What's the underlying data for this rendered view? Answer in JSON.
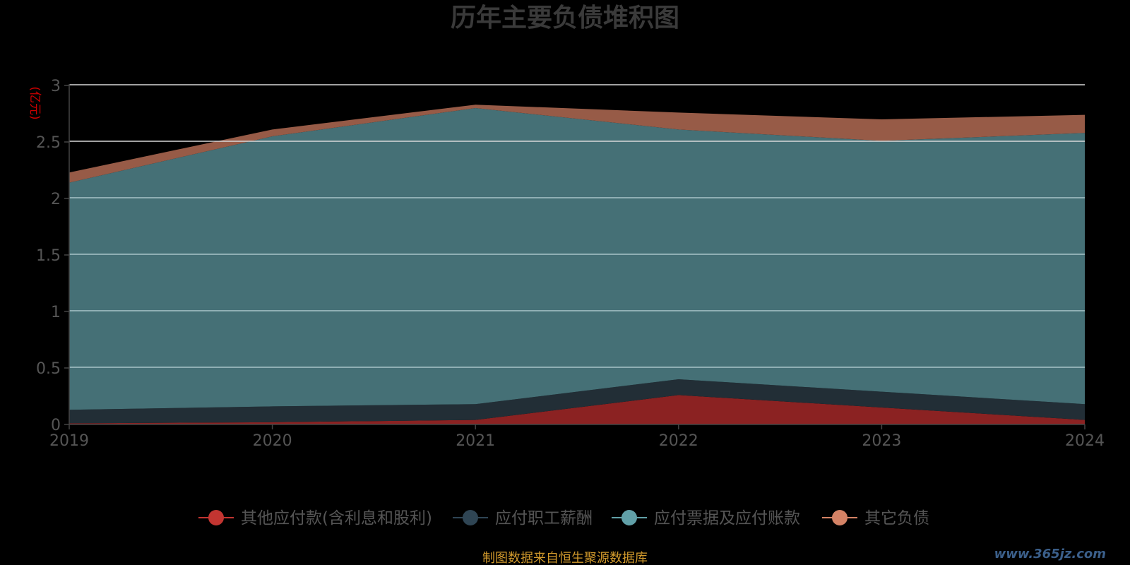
{
  "chart_data": {
    "type": "area",
    "stacked": true,
    "title": "历年主要负债堆积图",
    "unit_label": "(亿元)",
    "categories": [
      "2019",
      "2020",
      "2021",
      "2022",
      "2023",
      "2024"
    ],
    "yticks": [
      "0",
      "0.5",
      "1",
      "1.5",
      "2",
      "2.5",
      "3"
    ],
    "ylim": [
      0,
      3
    ],
    "series": [
      {
        "name": "其他应付款(含利息和股利)",
        "color": "#8b2222",
        "legend_color": "#c23531",
        "values": [
          0.01,
          0.02,
          0.04,
          0.26,
          0.15,
          0.04
        ]
      },
      {
        "name": "应付职工薪酬",
        "color": "#222e36",
        "legend_color": "#2f4554",
        "values": [
          0.12,
          0.14,
          0.14,
          0.14,
          0.14,
          0.14
        ]
      },
      {
        "name": "应付票据及应付账款",
        "color": "#457076",
        "legend_color": "#61a0a8",
        "values": [
          2.01,
          2.39,
          2.62,
          2.21,
          2.22,
          2.4
        ]
      },
      {
        "name": "其它负债",
        "color": "#975b47",
        "legend_color": "#d48265",
        "values": [
          0.09,
          0.06,
          0.03,
          0.15,
          0.19,
          0.16
        ]
      }
    ],
    "grid": true,
    "legend_position": "bottom"
  },
  "footer": {
    "source": "制图数据来自恒生聚源数据库",
    "watermark": "www.365jz.com"
  }
}
